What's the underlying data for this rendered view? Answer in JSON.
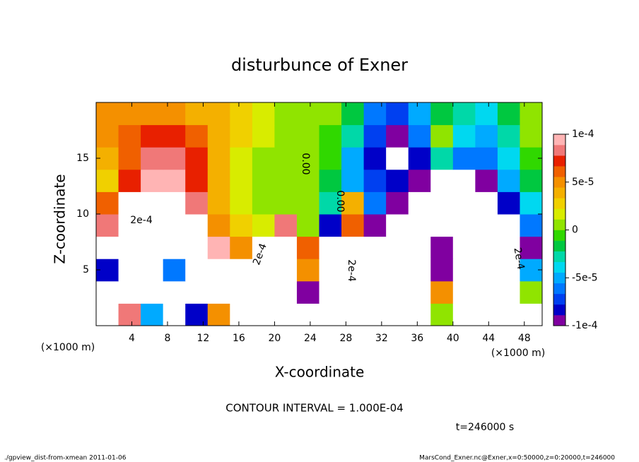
{
  "chart_data": {
    "type": "heatmap",
    "title": "disturbunce of Exner",
    "xlabel": "X-coordinate",
    "ylabel": "Z-coordinate",
    "xunit_left": "(×1000 m)",
    "xunit_right": "(×1000 m)",
    "xlim": [
      0,
      50
    ],
    "ylim": [
      0,
      20
    ],
    "xticks": [
      4,
      8,
      12,
      16,
      20,
      24,
      28,
      32,
      36,
      40,
      44,
      48
    ],
    "yticks": [
      5,
      10,
      15
    ],
    "clim": [
      -0.0001,
      0.0001
    ],
    "cticks": [
      {
        "value": 0.0001,
        "label": "1e-4"
      },
      {
        "value": 5e-05,
        "label": "5e-5"
      },
      0,
      {
        "value": -5e-05,
        "label": "-5e-5"
      },
      {
        "value": -0.0001,
        "label": "-1e-4"
      }
    ],
    "colors": [
      "#8000a0",
      "#0000c8",
      "#0040f0",
      "#0078ff",
      "#00aaff",
      "#00d8f0",
      "#00d8a8",
      "#00c840",
      "#30d800",
      "#90e400",
      "#d8ec00",
      "#f0d000",
      "#f4b000",
      "#f49000",
      "#f06000",
      "#e82000",
      "#f07878",
      "#ffb4b4"
    ],
    "over_color": "#ffffff",
    "z": [
      [
        0.0002,
        8e-05,
        -5e-05,
        0.0002,
        -8e-05,
        5e-05,
        0.0002,
        0.0002,
        0.0002,
        -0.0002,
        -0.0002,
        -0.0002,
        0.0002,
        0.0002,
        0.0002,
        1e-05,
        -0.0002,
        -0.0002,
        -0.0002,
        -0.0002
      ],
      [
        0.0002,
        0.0002,
        0.0002,
        0.0002,
        0.0002,
        0.0002,
        0.0002,
        0.0002,
        0.0002,
        -9e-05,
        -0.0002,
        -0.0002,
        0.0002,
        0.0002,
        0.0002,
        5e-05,
        -0.0002,
        -0.0002,
        -0.0002,
        0
      ],
      [
        -8e-05,
        0.0002,
        0.0002,
        -6e-05,
        0.0002,
        0.0002,
        0.0002,
        0.0002,
        0.0002,
        5e-05,
        -0.0002,
        -0.0002,
        0.0002,
        0.0002,
        0.0002,
        -0.0001,
        -0.0002,
        -0.0002,
        -0.0002,
        -5e-05
      ],
      [
        0.0002,
        0.0002,
        0.0002,
        0.0002,
        0.0002,
        9e-05,
        5e-05,
        0.0002,
        0.0002,
        6e-05,
        -0.0002,
        -0.0002,
        -0.0002,
        0.0002,
        0.0002,
        -0.0001,
        -0.0002,
        -0.0002,
        -0.0002,
        -0.0001
      ],
      [
        8e-05,
        0.0002,
        0.0002,
        0.0002,
        0.0002,
        5e-05,
        3e-05,
        2e-05,
        8e-05,
        1e-05,
        -8e-05,
        6e-05,
        -0.0001,
        -0.0002,
        -0.0002,
        -0.0002,
        -0.0002,
        -0.0002,
        -0.0002,
        -6e-05
      ],
      [
        6e-05,
        0.0002,
        0.0002,
        0.0002,
        8e-05,
        4e-05,
        2e-05,
        1e-05,
        1e-05,
        0,
        -3e-05,
        4e-05,
        -6e-05,
        -0.0001,
        -0.0002,
        -0.0002,
        -0.0002,
        -0.0002,
        -8e-05,
        -4e-05
      ],
      [
        3e-05,
        7e-05,
        9e-05,
        9e-05,
        7e-05,
        4e-05,
        2e-05,
        1e-05,
        0,
        1e-05,
        -2e-05,
        -5e-05,
        -7e-05,
        -8e-05,
        -9e-05,
        -0.0002,
        -0.0002,
        -9e-05,
        -5e-05,
        -2e-05
      ],
      [
        4e-05,
        6e-05,
        8e-05,
        8e-05,
        7e-05,
        4e-05,
        2e-05,
        1e-05,
        1e-05,
        0,
        -1e-05,
        -5e-05,
        -8e-05,
        -0.0002,
        -8e-05,
        -3e-05,
        -6e-05,
        -6e-05,
        -4e-05,
        -1e-05
      ],
      [
        5e-05,
        6e-05,
        7e-05,
        7e-05,
        6e-05,
        4e-05,
        3e-05,
        2e-05,
        1e-05,
        1e-05,
        -1e-05,
        -3e-05,
        -7e-05,
        -0.0001,
        -6e-05,
        0,
        -4e-05,
        -5e-05,
        -3e-05,
        0
      ],
      [
        5e-05,
        5e-05,
        5e-05,
        5e-05,
        4e-05,
        4e-05,
        3e-05,
        2e-05,
        1e-05,
        1e-05,
        0,
        -2e-05,
        -6e-05,
        -7e-05,
        -5e-05,
        -2e-05,
        -3e-05,
        -4e-05,
        -2e-05,
        0
      ]
    ],
    "annotations": [
      "2e-4",
      "2e-4",
      "0.00",
      "0.00",
      "2e-4",
      "2e-4"
    ],
    "contour_interval": "CONTOUR INTERVAL = 1.000E-04",
    "time_label": "t=246000 s",
    "footer_left": "./gpview_dist-from-xmean  2011-01-06",
    "footer_right": "MarsCond_Exner.nc@Exner,x=0:50000,z=0:20000,t=246000"
  }
}
